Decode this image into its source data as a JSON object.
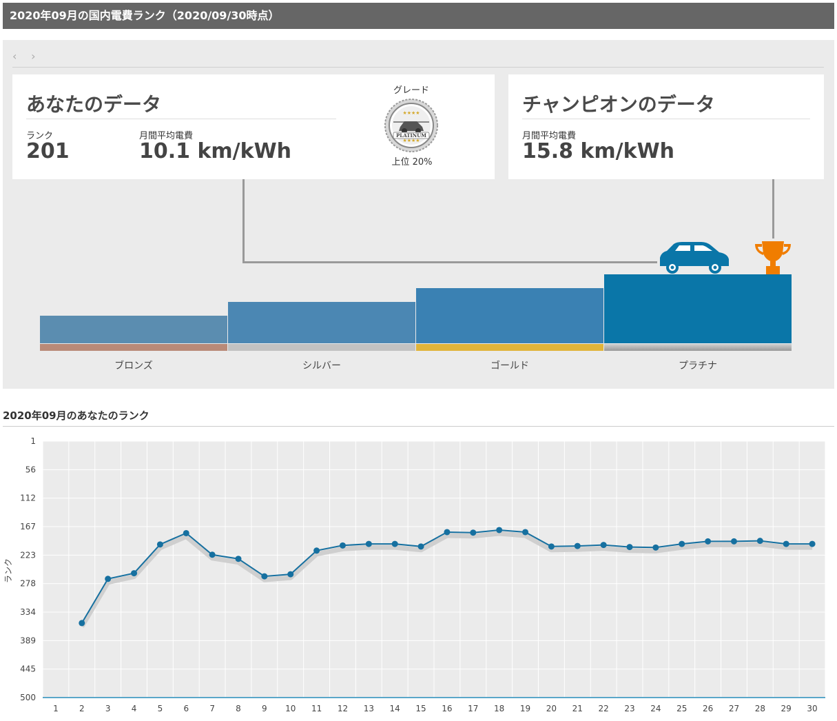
{
  "header": {
    "title": "2020年09月の国内電費ランク（2020/09/30時点）"
  },
  "nav": {
    "prev": "‹",
    "next": "›"
  },
  "you": {
    "heading": "あなたのデータ",
    "rank_label": "ランク",
    "rank_value": "201",
    "efficiency_label": "月間平均電費",
    "efficiency_value": "10.1 km/kWh",
    "grade_label": "グレード",
    "grade_badge": "PLATINUM",
    "grade_percent": "上位 20%"
  },
  "champion": {
    "heading": "チャンピオンのデータ",
    "efficiency_label": "月間平均電費",
    "efficiency_value": "15.8 km/kWh"
  },
  "tiers": [
    {
      "label": "ブロンズ",
      "bar_color": "#5b8db0",
      "strip_color": "#b98a78"
    },
    {
      "label": "シルバー",
      "bar_color": "#4b87b3",
      "strip_color": "#c2c2c2"
    },
    {
      "label": "ゴールド",
      "bar_color": "#3a81b3",
      "strip_color": "#e0b43a"
    },
    {
      "label": "プラチナ",
      "bar_color": "#0a76a8",
      "strip_color": "#a9a9a9"
    }
  ],
  "icons": {
    "car": "car-icon",
    "trophy": "trophy-icon",
    "badge": "platinum-badge-icon"
  },
  "colors": {
    "accent": "#0a76a8",
    "trophy": "#f07d00",
    "line": "#1670a0"
  },
  "chart_title": "2020年09月のあなたのランク",
  "chart_data": {
    "type": "line",
    "ylabel": "ランク",
    "y_reversed": true,
    "ylim": [
      1,
      500
    ],
    "yticks": [
      "1",
      "56",
      "112",
      "167",
      "223",
      "278",
      "334",
      "389",
      "445",
      "500"
    ],
    "x": [
      1,
      2,
      3,
      4,
      5,
      6,
      7,
      8,
      9,
      10,
      11,
      12,
      13,
      14,
      15,
      16,
      17,
      18,
      19,
      20,
      21,
      22,
      23,
      24,
      25,
      26,
      27,
      28,
      29,
      30
    ],
    "series": [
      {
        "values": [
          null,
          355,
          269,
          258,
          202,
          180,
          222,
          230,
          264,
          260,
          214,
          204,
          201,
          201,
          206,
          178,
          179,
          174,
          178,
          206,
          205,
          203,
          207,
          208,
          201,
          196,
          196,
          195,
          201,
          201
        ]
      }
    ],
    "grid": true
  }
}
